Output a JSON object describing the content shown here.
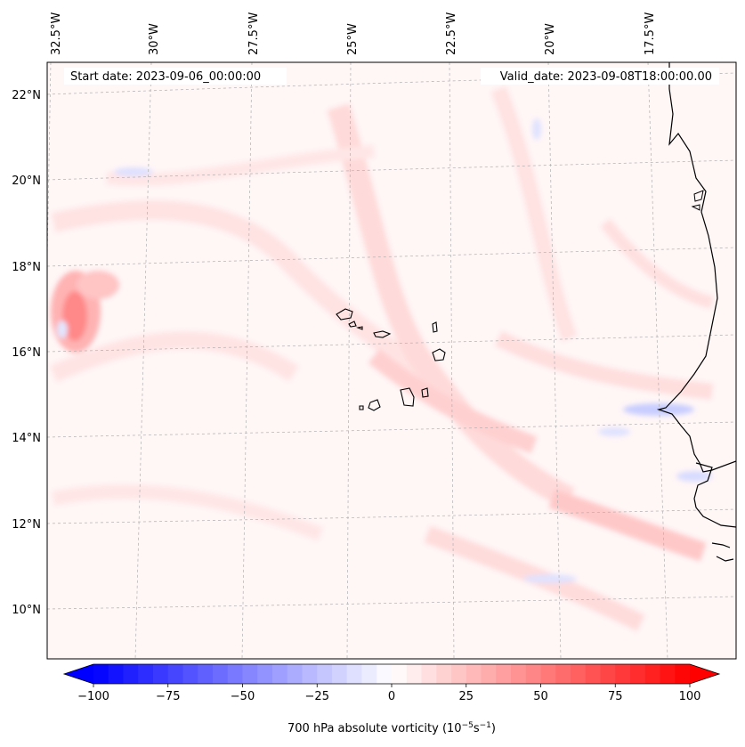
{
  "map": {
    "type": "contour-map",
    "start_label": "Start date: 2023-09-06_00:00:00",
    "valid_label": "Valid_date: 2023-09-08T18:00:00.00",
    "lon_ticks": [
      "32.5°W",
      "30°W",
      "27.5°W",
      "25°W",
      "22.5°W",
      "20°W",
      "17.5°W"
    ],
    "lat_ticks": [
      "22°N",
      "20°N",
      "18°N",
      "16°N",
      "14°N",
      "12°N",
      "10°N"
    ],
    "colorbar": {
      "label": "700 hPa absolute vorticity (10",
      "label_exp1": "−5",
      "label_mid": "s",
      "label_exp2": "−1",
      "label_end": ")",
      "range": [
        -100,
        100
      ],
      "tick_labels": [
        "−100",
        "−75",
        "−50",
        "−25",
        "0",
        "25",
        "50",
        "75",
        "100"
      ],
      "tick_values": [
        -100,
        -75,
        -50,
        -25,
        0,
        25,
        50,
        75,
        100
      ],
      "n_levels": 40,
      "colormap": "bwr",
      "colors": {
        "low": "#0000ff",
        "mid": "#ffffff",
        "high": "#ff0000"
      }
    },
    "colors": {
      "background_field": "#fff6f6",
      "coast": "#000000",
      "grid": "#b0b0b0"
    }
  }
}
